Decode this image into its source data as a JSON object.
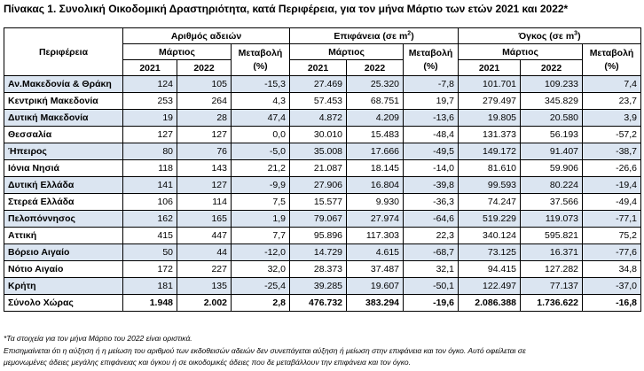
{
  "title": "Πίνακας 1. Συνολική Οικοδομική Δραστηριότητα, κατά  Περιφέρεια, για τον μήνα Μάρτιο των ετών 2021 και 2022*",
  "header": {
    "region_label": "Περιφέρεια",
    "groups": [
      {
        "label": "Αριθμός αδειών",
        "unit_sup": ""
      },
      {
        "label": "Επιφάνεια (σε m",
        "unit_sup": "2"
      },
      {
        "label": "Όγκος (σε m",
        "unit_sup": "3"
      }
    ],
    "month": "Μάρτιος",
    "change_label": "Μεταβολή",
    "change_unit": "(%)",
    "year1": "2021",
    "year2": "2022"
  },
  "rows": [
    {
      "name": "Αν.Μακεδονία & Θράκη",
      "p1": "124",
      "p2": "105",
      "pc": "-15,3",
      "s1": "27.469",
      "s2": "25.320",
      "sc": "-7,8",
      "v1": "101.701",
      "v2": "109.233",
      "vc": "7,4"
    },
    {
      "name": "Κεντρική Μακεδονία",
      "p1": "253",
      "p2": "264",
      "pc": "4,3",
      "s1": "57.453",
      "s2": "68.751",
      "sc": "19,7",
      "v1": "279.497",
      "v2": "345.829",
      "vc": "23,7"
    },
    {
      "name": "Δυτική Μακεδονία",
      "p1": "19",
      "p2": "28",
      "pc": "47,4",
      "s1": "4.872",
      "s2": "4.209",
      "sc": "-13,6",
      "v1": "19.805",
      "v2": "20.580",
      "vc": "3,9"
    },
    {
      "name": "Θεσσαλία",
      "p1": "127",
      "p2": "127",
      "pc": "0,0",
      "s1": "30.010",
      "s2": "15.483",
      "sc": "-48,4",
      "v1": "131.373",
      "v2": "56.193",
      "vc": "-57,2"
    },
    {
      "name": "Ήπειρος",
      "p1": "80",
      "p2": "76",
      "pc": "-5,0",
      "s1": "35.008",
      "s2": "17.666",
      "sc": "-49,5",
      "v1": "149.172",
      "v2": "91.407",
      "vc": "-38,7"
    },
    {
      "name": "Ιόνια Νησιά",
      "p1": "118",
      "p2": "143",
      "pc": "21,2",
      "s1": "21.087",
      "s2": "18.145",
      "sc": "-14,0",
      "v1": "81.610",
      "v2": "59.906",
      "vc": "-26,6"
    },
    {
      "name": "Δυτική Ελλάδα",
      "p1": "141",
      "p2": "127",
      "pc": "-9,9",
      "s1": "27.906",
      "s2": "16.804",
      "sc": "-39,8",
      "v1": "99.593",
      "v2": "80.224",
      "vc": "-19,4"
    },
    {
      "name": "Στερεά Ελλάδα",
      "p1": "106",
      "p2": "114",
      "pc": "7,5",
      "s1": "15.577",
      "s2": "9.930",
      "sc": "-36,3",
      "v1": "74.247",
      "v2": "37.566",
      "vc": "-49,4"
    },
    {
      "name": "Πελοπόννησος",
      "p1": "162",
      "p2": "165",
      "pc": "1,9",
      "s1": "79.067",
      "s2": "27.974",
      "sc": "-64,6",
      "v1": "519.229",
      "v2": "119.073",
      "vc": "-77,1"
    },
    {
      "name": "Αττική",
      "p1": "415",
      "p2": "447",
      "pc": "7,7",
      "s1": "95.896",
      "s2": "117.303",
      "sc": "22,3",
      "v1": "340.124",
      "v2": "595.821",
      "vc": "75,2"
    },
    {
      "name": "Βόρειο Αιγαίο",
      "p1": "50",
      "p2": "44",
      "pc": "-12,0",
      "s1": "14.729",
      "s2": "4.615",
      "sc": "-68,7",
      "v1": "73.125",
      "v2": "16.371",
      "vc": "-77,6"
    },
    {
      "name": "Νότιο Αιγαίο",
      "p1": "172",
      "p2": "227",
      "pc": "32,0",
      "s1": "28.373",
      "s2": "37.487",
      "sc": "32,1",
      "v1": "94.415",
      "v2": "127.282",
      "vc": "34,8"
    },
    {
      "name": "Κρήτη",
      "p1": "181",
      "p2": "135",
      "pc": "-25,4",
      "s1": "39.285",
      "s2": "19.607",
      "sc": "-50,1",
      "v1": "122.497",
      "v2": "77.137",
      "vc": "-37,0"
    },
    {
      "name": "Σύνολο Χώρας",
      "p1": "1.948",
      "p2": "2.002",
      "pc": "2,8",
      "s1": "476.732",
      "s2": "383.294",
      "sc": "-19,6",
      "v1": "2.086.388",
      "v2": "1.736.622",
      "vc": "-16,8"
    }
  ],
  "notes": [
    "*Τα στοιχεία για τον μήνα Μάρτιο του 2022 είναι οριστικά.",
    "Επισημαίνεται ότι η αύξηση ή η μείωση του αριθμού των εκδοθεισών αδειών δεν συνεπάγεται αύξηση ή μείωση στην επιφάνεια και τον όγκο. Αυτό οφείλεται σε",
    "μεμονωμένες άδειες μεγάλης επιφάνειας και όγκου ή σε οικοδομικές άδειες που δε μεταβάλλουν την επιφάνεια και τον όγκο."
  ],
  "colors": {
    "row_highlight": "#dbe5f1"
  }
}
